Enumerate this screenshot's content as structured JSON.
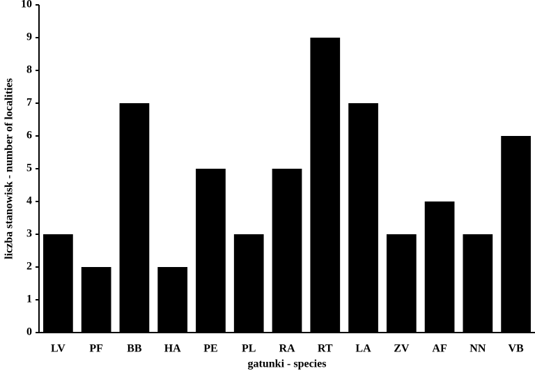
{
  "chart_data": {
    "type": "bar",
    "x_label": "gatunki - species",
    "y_label": "liczba stanowisk - number of localities",
    "categories": [
      "LV",
      "PF",
      "BB",
      "HA",
      "PE",
      "PL",
      "RA",
      "RT",
      "LA",
      "ZV",
      "AF",
      "NN",
      "VB"
    ],
    "values": [
      3,
      2,
      7,
      2,
      5,
      3,
      5,
      9,
      7,
      3,
      4,
      3,
      6
    ],
    "color": "#000000",
    "ylim": [
      0,
      10
    ],
    "yticks": [
      0,
      1,
      2,
      3,
      4,
      5,
      6,
      7,
      8,
      9,
      10
    ],
    "grid": false
  }
}
